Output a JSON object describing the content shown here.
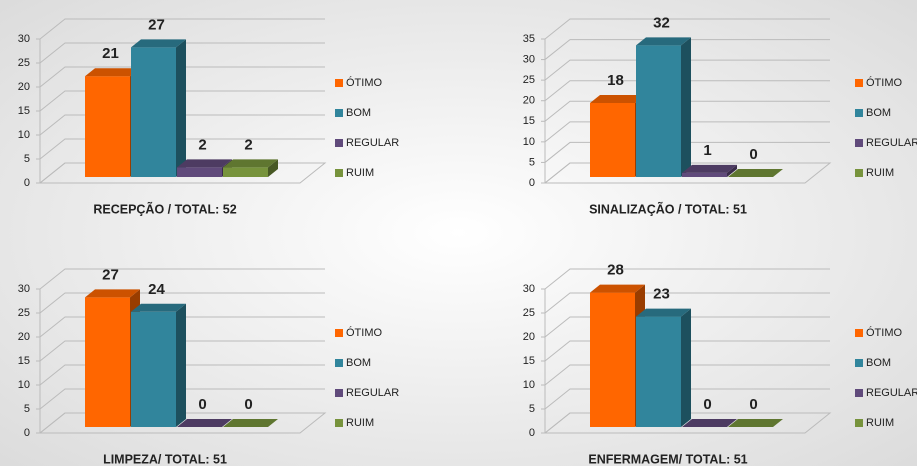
{
  "chart_data": [
    {
      "type": "bar",
      "title": "RECEPÇÃO / TOTAL: 52",
      "categories": [
        "ÓTIMO",
        "BOM",
        "REGULAR",
        "RUIM"
      ],
      "values": [
        21,
        27,
        2,
        2
      ],
      "colors": [
        "#ff6600",
        "#31859c",
        "#604a7b",
        "#77933c"
      ],
      "ylim": [
        0,
        30
      ],
      "yticks": [
        0,
        5,
        10,
        15,
        20,
        25,
        30
      ],
      "grid": true,
      "legend": "right"
    },
    {
      "type": "bar",
      "title": "SINALIZAÇÃO / TOTAL: 51",
      "categories": [
        "ÓTIMO",
        "BOM",
        "REGULAR",
        "RUIM"
      ],
      "values": [
        18,
        32,
        1,
        0
      ],
      "colors": [
        "#ff6600",
        "#31859c",
        "#604a7b",
        "#77933c"
      ],
      "ylim": [
        0,
        35
      ],
      "yticks": [
        0,
        5,
        10,
        15,
        20,
        25,
        30,
        35
      ],
      "grid": true,
      "legend": "right"
    },
    {
      "type": "bar",
      "title": "LIMPEZA/ TOTAL: 51",
      "categories": [
        "ÓTIMO",
        "BOM",
        "REGULAR",
        "RUIM"
      ],
      "values": [
        27,
        24,
        0,
        0
      ],
      "colors": [
        "#ff6600",
        "#31859c",
        "#604a7b",
        "#77933c"
      ],
      "ylim": [
        0,
        30
      ],
      "yticks": [
        0,
        5,
        10,
        15,
        20,
        25,
        30
      ],
      "grid": true,
      "legend": "right"
    },
    {
      "type": "bar",
      "title": "ENFERMAGEM/ TOTAL: 51",
      "categories": [
        "ÓTIMO",
        "BOM",
        "REGULAR",
        "RUIM"
      ],
      "values": [
        28,
        23,
        0,
        0
      ],
      "colors": [
        "#ff6600",
        "#31859c",
        "#604a7b",
        "#77933c"
      ],
      "ylim": [
        0,
        30
      ],
      "yticks": [
        0,
        5,
        10,
        15,
        20,
        25,
        30
      ],
      "grid": true,
      "legend": "right"
    }
  ]
}
